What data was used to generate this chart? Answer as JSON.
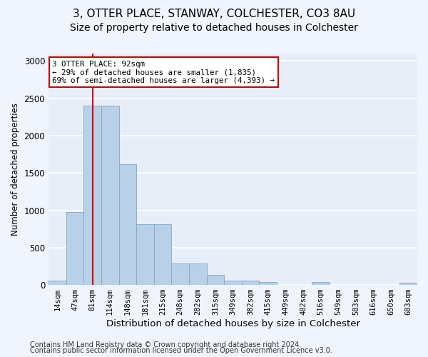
{
  "title1": "3, OTTER PLACE, STANWAY, COLCHESTER, CO3 8AU",
  "title2": "Size of property relative to detached houses in Colchester",
  "xlabel": "Distribution of detached houses by size in Colchester",
  "ylabel": "Number of detached properties",
  "footer1": "Contains HM Land Registry data © Crown copyright and database right 2024.",
  "footer2": "Contains public sector information licensed under the Open Government Licence v3.0.",
  "bin_labels": [
    "14sqm",
    "47sqm",
    "81sqm",
    "114sqm",
    "148sqm",
    "181sqm",
    "215sqm",
    "248sqm",
    "282sqm",
    "315sqm",
    "349sqm",
    "382sqm",
    "415sqm",
    "449sqm",
    "482sqm",
    "516sqm",
    "549sqm",
    "583sqm",
    "616sqm",
    "650sqm",
    "683sqm"
  ],
  "bar_values": [
    60,
    975,
    2400,
    2400,
    1620,
    810,
    810,
    290,
    290,
    130,
    60,
    60,
    40,
    0,
    0,
    40,
    0,
    0,
    0,
    0,
    30
  ],
  "bar_color": "#b8d0e8",
  "bar_edge_color": "#7aaace",
  "vline_pos": 2.0,
  "annotation_text": "3 OTTER PLACE: 92sqm\n← 29% of detached houses are smaller (1,835)\n69% of semi-detached houses are larger (4,393) →",
  "annotation_box_color": "#ffffff",
  "annotation_box_edge_color": "#cc0000",
  "vline_color": "#cc0000",
  "ylim_max": 3100,
  "bg_color": "#e8eef8",
  "grid_color": "#ffffff",
  "title1_fontsize": 11,
  "title2_fontsize": 10,
  "xlabel_fontsize": 9.5,
  "ylabel_fontsize": 8.5,
  "tick_fontsize": 7.5,
  "footer_fontsize": 7
}
